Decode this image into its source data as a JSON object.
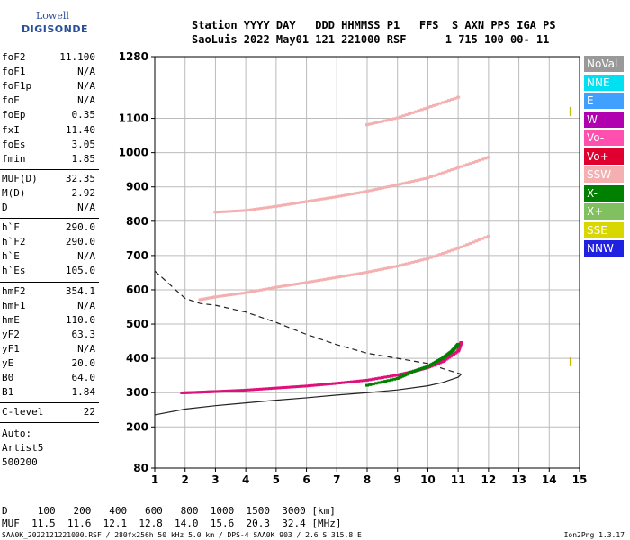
{
  "logo": {
    "line1": "Lowell",
    "line2": "DIGISONDE"
  },
  "header": {
    "labels": "Station YYYY DAY   DDD HHMMSS P1   FFS  S AXN PPS IGA PS",
    "values": "SaoLuis 2022 May01 121 221000 RSF      1 715 100 00- 11"
  },
  "params_group1": [
    {
      "name": "foF2",
      "value": "11.100"
    },
    {
      "name": "foF1",
      "value": "N/A"
    },
    {
      "name": "foF1p",
      "value": "N/A"
    },
    {
      "name": "foE",
      "value": "N/A"
    },
    {
      "name": "foEp",
      "value": "0.35"
    },
    {
      "name": "fxI",
      "value": "11.40"
    },
    {
      "name": "foEs",
      "value": "3.05"
    },
    {
      "name": "fmin",
      "value": "1.85"
    }
  ],
  "params_group2": [
    {
      "name": "MUF(D)",
      "value": "32.35"
    },
    {
      "name": "M(D)",
      "value": "2.92"
    },
    {
      "name": "D",
      "value": "N/A"
    }
  ],
  "params_group3": [
    {
      "name": "h`F",
      "value": "290.0"
    },
    {
      "name": "h`F2",
      "value": "290.0"
    },
    {
      "name": "h`E",
      "value": "N/A"
    },
    {
      "name": "h`Es",
      "value": "105.0"
    }
  ],
  "params_group4": [
    {
      "name": "hmF2",
      "value": "354.1"
    },
    {
      "name": "hmF1",
      "value": "N/A"
    },
    {
      "name": "hmE",
      "value": "110.0"
    },
    {
      "name": "yF2",
      "value": "63.3"
    },
    {
      "name": "yF1",
      "value": "N/A"
    },
    {
      "name": "yE",
      "value": "20.0"
    },
    {
      "name": "B0",
      "value": "64.0"
    },
    {
      "name": "B1",
      "value": "1.84"
    }
  ],
  "params_group5": [
    {
      "name": "C-level",
      "value": "22"
    }
  ],
  "autoscale": {
    "line1": "Auto:",
    "line2": "Artist5",
    "line3": "500200"
  },
  "legend": [
    {
      "label": "NoVal",
      "bg": "#999999",
      "fg": "#ffffff"
    },
    {
      "label": "NNE",
      "bg": "#00e0f0",
      "fg": "#ffffff"
    },
    {
      "label": "E",
      "bg": "#40a0ff",
      "fg": "#ffffff"
    },
    {
      "label": "W",
      "bg": "#b000b0",
      "fg": "#ffffff"
    },
    {
      "label": "Vo-",
      "bg": "#ff50b0",
      "fg": "#ffffff"
    },
    {
      "label": "Vo+",
      "bg": "#e00030",
      "fg": "#ffffff"
    },
    {
      "label": "SSW",
      "bg": "#f4b0b0",
      "fg": "#ffffff"
    },
    {
      "label": "X-",
      "bg": "#008000",
      "fg": "#ffffff"
    },
    {
      "label": "X+",
      "bg": "#80c060",
      "fg": "#ffffff"
    },
    {
      "label": "SSE",
      "bg": "#d8d800",
      "fg": "#ffffff"
    },
    {
      "label": "NNW",
      "bg": "#2020e0",
      "fg": "#ffffff"
    }
  ],
  "mufline": {
    "d": "D     100   200   400   600   800  1000  1500  3000 [km]",
    "muf": "MUF  11.5  11.6  12.1  12.8  14.0  15.6  20.3  32.4 [MHz]"
  },
  "footer": "SAA0K_2022121221000.RSF / 280fx256h 50 kHz 5.0 km / DPS-4 SAA0K 903 / 2.6 S 315.8 E",
  "version": "Ion2Png 1.3.17",
  "chart_data": {
    "type": "scatter",
    "xlim": [
      1,
      15
    ],
    "ylim": [
      80,
      1280
    ],
    "xticks": [
      1,
      2,
      3,
      4,
      5,
      6,
      7,
      8,
      9,
      10,
      11,
      12,
      13,
      14,
      15
    ],
    "yticks": [
      80,
      200,
      300,
      400,
      500,
      600,
      700,
      800,
      900,
      1000,
      1100,
      1280
    ],
    "grid": true,
    "traces": [
      {
        "name": "o-trace",
        "color": "#e0107a",
        "x": [
          1.9,
          2.5,
          3.0,
          4.0,
          5.0,
          6.0,
          7.0,
          8.0,
          9.0,
          9.5,
          10.0,
          10.5,
          11.0,
          11.1
        ],
        "y": [
          298,
          300,
          302,
          306,
          312,
          318,
          326,
          335,
          350,
          360,
          372,
          390,
          420,
          445
        ]
      },
      {
        "name": "x-trace",
        "color": "#008000",
        "x": [
          8.0,
          9.0,
          9.5,
          10.0,
          10.5,
          10.8,
          11.0
        ],
        "y": [
          320,
          340,
          360,
          375,
          400,
          420,
          440
        ]
      },
      {
        "name": "2nd-hop",
        "color": "#f4b0b0",
        "x": [
          2.5,
          3.0,
          4.0,
          5.0,
          6.0,
          7.0,
          8.0,
          9.0,
          10.0,
          11.0,
          12.0
        ],
        "y": [
          570,
          578,
          590,
          606,
          620,
          635,
          650,
          668,
          690,
          720,
          755
        ]
      },
      {
        "name": "3rd-hop",
        "color": "#f4b0b0",
        "x": [
          3.0,
          4.0,
          5.0,
          6.0,
          7.0,
          8.0,
          9.0,
          10.0,
          11.0,
          12.0
        ],
        "y": [
          825,
          830,
          842,
          856,
          870,
          886,
          905,
          925,
          955,
          985
        ]
      },
      {
        "name": "4th-hop",
        "color": "#f4b0b0",
        "x": [
          8.0,
          9.0,
          10.0,
          11.0
        ],
        "y": [
          1080,
          1100,
          1130,
          1160
        ]
      }
    ],
    "profile_solid": {
      "x": [
        1.0,
        2.0,
        3.0,
        4.0,
        5.0,
        6.0,
        7.0,
        8.0,
        9.0,
        10.0,
        10.5,
        11.0,
        11.1
      ],
      "y": [
        235,
        252,
        262,
        270,
        278,
        285,
        293,
        300,
        308,
        320,
        330,
        345,
        354
      ]
    },
    "profile_dashed": {
      "x": [
        1.0,
        2.0,
        2.5,
        3.0,
        4.0,
        5.0,
        6.0,
        7.0,
        8.0,
        9.0,
        10.0,
        10.5,
        11.1
      ],
      "y": [
        655,
        575,
        560,
        555,
        535,
        505,
        470,
        440,
        415,
        400,
        385,
        370,
        354
      ]
    },
    "markers": [
      {
        "x": 14.7,
        "y": 1120,
        "color": "#c0c000"
      },
      {
        "x": 14.7,
        "y": 390,
        "color": "#c0c000"
      }
    ]
  }
}
